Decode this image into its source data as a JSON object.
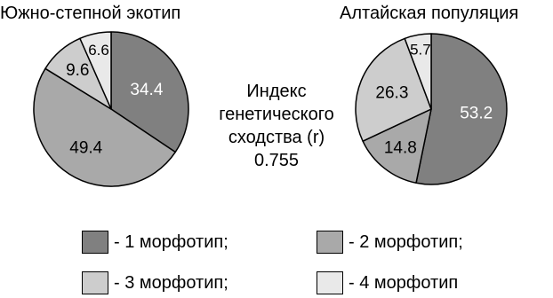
{
  "chart_data": [
    {
      "type": "pie",
      "title": "Южно-степной экотип",
      "slices": [
        {
          "label": "1 морфотип",
          "value": 34.4,
          "color": "#808080",
          "text_color": "#ffffff"
        },
        {
          "label": "2 морфотип",
          "value": 49.4,
          "color": "#a9a9a9",
          "text_color": "#000000"
        },
        {
          "label": "3 морфотип",
          "value": 9.6,
          "color": "#cdcdcd",
          "text_color": "#000000"
        },
        {
          "label": "4 морфотип",
          "value": 6.6,
          "color": "#e9e9e9",
          "text_color": "#000000"
        }
      ]
    },
    {
      "type": "pie",
      "title": "Алтайская популяция",
      "slices": [
        {
          "label": "1 морфотип",
          "value": 53.2,
          "color": "#808080",
          "text_color": "#ffffff"
        },
        {
          "label": "2 морфотип",
          "value": 14.8,
          "color": "#a9a9a9",
          "text_color": "#000000"
        },
        {
          "label": "3 морфотип",
          "value": 26.3,
          "color": "#cdcdcd",
          "text_color": "#000000"
        },
        {
          "label": "4 морфотип",
          "value": 5.7,
          "color": "#e9e9e9",
          "text_color": "#000000"
        }
      ]
    }
  ],
  "similarity": {
    "line1": "Индекс",
    "line2": "генетического",
    "line3": "сходства (r)",
    "value": "0.755"
  },
  "legend": [
    {
      "label": "- 1 морфотип;",
      "color": "#808080"
    },
    {
      "label": "- 2 морфотип;",
      "color": "#a9a9a9"
    },
    {
      "label": "- 3 морфотип;",
      "color": "#cdcdcd"
    },
    {
      "label": "- 4 морфотип",
      "color": "#e9e9e9"
    }
  ]
}
